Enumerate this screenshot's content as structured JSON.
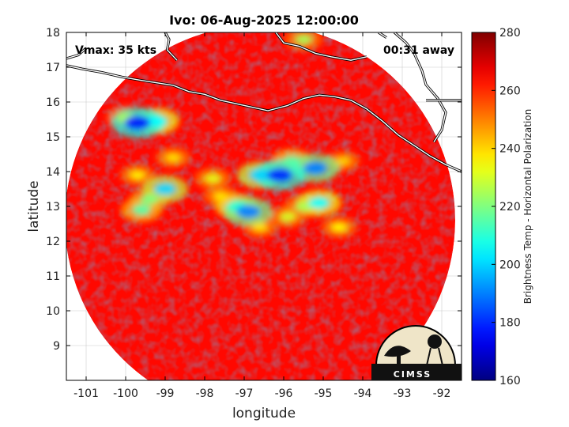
{
  "chart_data": {
    "type": "heatmap",
    "title": "Ivo: 06-Aug-2025 12:00:00",
    "xlabel": "longitude",
    "ylabel": "latitude",
    "xlim": [
      -101.5,
      -91.5
    ],
    "ylim": [
      8,
      18
    ],
    "x_ticks": [
      "-101",
      "-100",
      "-99",
      "-98",
      "-97",
      "-96",
      "-95",
      "-94",
      "-93",
      "-92"
    ],
    "y_ticks": [
      "18",
      "17",
      "16",
      "15",
      "14",
      "13",
      "12",
      "11",
      "10",
      "9"
    ],
    "x_tick_values": [
      -101,
      -100,
      -99,
      -98,
      -97,
      -96,
      -95,
      -94,
      -93,
      -92
    ],
    "y_tick_values": [
      18,
      17,
      16,
      15,
      14,
      13,
      12,
      11,
      10,
      9
    ],
    "grid": true,
    "colorbar": {
      "label": "Brightness Temp - Horizontal Polarization",
      "range": [
        160,
        280
      ],
      "ticks": [
        "280",
        "260",
        "240",
        "220",
        "200",
        "180",
        "160"
      ],
      "tick_values": [
        280,
        260,
        240,
        220,
        200,
        180,
        160
      ],
      "colormap": "jet"
    },
    "annotations": {
      "vmax": "Vmax: 35 kts",
      "time_offset": "00:31 away"
    },
    "swath": {
      "shape": "circle",
      "center_lon": -96.6,
      "center_lat": 12.6,
      "background_temp": 264
    },
    "cold_features": [
      {
        "lon": -99.7,
        "lat": 15.4,
        "temp": 178
      },
      {
        "lon": -99.2,
        "lat": 15.45,
        "temp": 205
      },
      {
        "lon": -100.0,
        "lat": 15.55,
        "temp": 225
      },
      {
        "lon": -96.1,
        "lat": 13.9,
        "temp": 180
      },
      {
        "lon": -96.6,
        "lat": 13.9,
        "temp": 200
      },
      {
        "lon": -95.2,
        "lat": 14.1,
        "temp": 190
      },
      {
        "lon": -95.8,
        "lat": 14.3,
        "temp": 215
      },
      {
        "lon": -97.2,
        "lat": 13.0,
        "temp": 210
      },
      {
        "lon": -96.9,
        "lat": 12.85,
        "temp": 190
      },
      {
        "lon": -99.0,
        "lat": 13.5,
        "temp": 200
      },
      {
        "lon": -99.4,
        "lat": 13.2,
        "temp": 220
      },
      {
        "lon": -99.6,
        "lat": 12.9,
        "temp": 215
      },
      {
        "lon": -95.1,
        "lat": 13.1,
        "temp": 205
      },
      {
        "lon": -95.5,
        "lat": 13.0,
        "temp": 225
      },
      {
        "lon": -95.9,
        "lat": 12.7,
        "temp": 230
      },
      {
        "lon": -94.6,
        "lat": 12.4,
        "temp": 235
      },
      {
        "lon": -96.6,
        "lat": 12.4,
        "temp": 238
      },
      {
        "lon": -97.8,
        "lat": 13.8,
        "temp": 232
      },
      {
        "lon": -97.6,
        "lat": 13.3,
        "temp": 238
      },
      {
        "lon": -95.5,
        "lat": 17.8,
        "temp": 225
      },
      {
        "lon": -98.8,
        "lat": 14.4,
        "temp": 238
      },
      {
        "lon": -99.7,
        "lat": 13.9,
        "temp": 236
      },
      {
        "lon": -94.5,
        "lat": 14.3,
        "temp": 240
      }
    ],
    "coastline": [
      [
        [
          -101.5,
          17.05
        ],
        [
          -101.1,
          16.95
        ],
        [
          -100.6,
          16.85
        ],
        [
          -100.1,
          16.72
        ],
        [
          -99.6,
          16.62
        ],
        [
          -99.2,
          16.55
        ],
        [
          -98.8,
          16.48
        ],
        [
          -98.4,
          16.3
        ],
        [
          -98.0,
          16.22
        ],
        [
          -97.6,
          16.05
        ],
        [
          -97.2,
          15.95
        ],
        [
          -96.8,
          15.85
        ],
        [
          -96.4,
          15.75
        ],
        [
          -95.9,
          15.9
        ],
        [
          -95.5,
          16.1
        ],
        [
          -95.1,
          16.2
        ],
        [
          -94.7,
          16.15
        ],
        [
          -94.3,
          16.05
        ],
        [
          -93.9,
          15.8
        ],
        [
          -93.5,
          15.45
        ],
        [
          -93.1,
          15.05
        ],
        [
          -92.7,
          14.75
        ],
        [
          -92.3,
          14.45
        ],
        [
          -91.9,
          14.2
        ],
        [
          -91.5,
          14.0
        ]
      ],
      [
        [
          -101.5,
          17.25
        ],
        [
          -101.2,
          17.35
        ],
        [
          -101.0,
          17.55
        ]
      ],
      [
        [
          -99.0,
          18.0
        ],
        [
          -98.9,
          17.8
        ],
        [
          -98.95,
          17.5
        ],
        [
          -98.7,
          17.2
        ]
      ],
      [
        [
          -96.2,
          18.0
        ],
        [
          -96.0,
          17.7
        ],
        [
          -95.6,
          17.6
        ],
        [
          -95.2,
          17.4
        ],
        [
          -94.8,
          17.3
        ],
        [
          -94.3,
          17.2
        ],
        [
          -93.9,
          17.3
        ]
      ],
      [
        [
          -93.2,
          18.0
        ],
        [
          -92.9,
          17.7
        ],
        [
          -92.7,
          17.4
        ],
        [
          -92.5,
          16.9
        ],
        [
          -92.4,
          16.5
        ],
        [
          -92.1,
          16.1
        ],
        [
          -91.9,
          15.7
        ],
        [
          -92.0,
          15.2
        ],
        [
          -92.2,
          14.85
        ]
      ],
      [
        [
          -92.4,
          16.05
        ],
        [
          -92.0,
          16.05
        ],
        [
          -91.5,
          16.05
        ]
      ],
      [
        [
          -93.6,
          18.0
        ],
        [
          -93.4,
          17.85
        ]
      ]
    ]
  },
  "logo": {
    "text": "CIMSS"
  },
  "colors": {
    "coastline": "#ffffff",
    "gridline": "#cccccc",
    "frame": "#000000"
  }
}
